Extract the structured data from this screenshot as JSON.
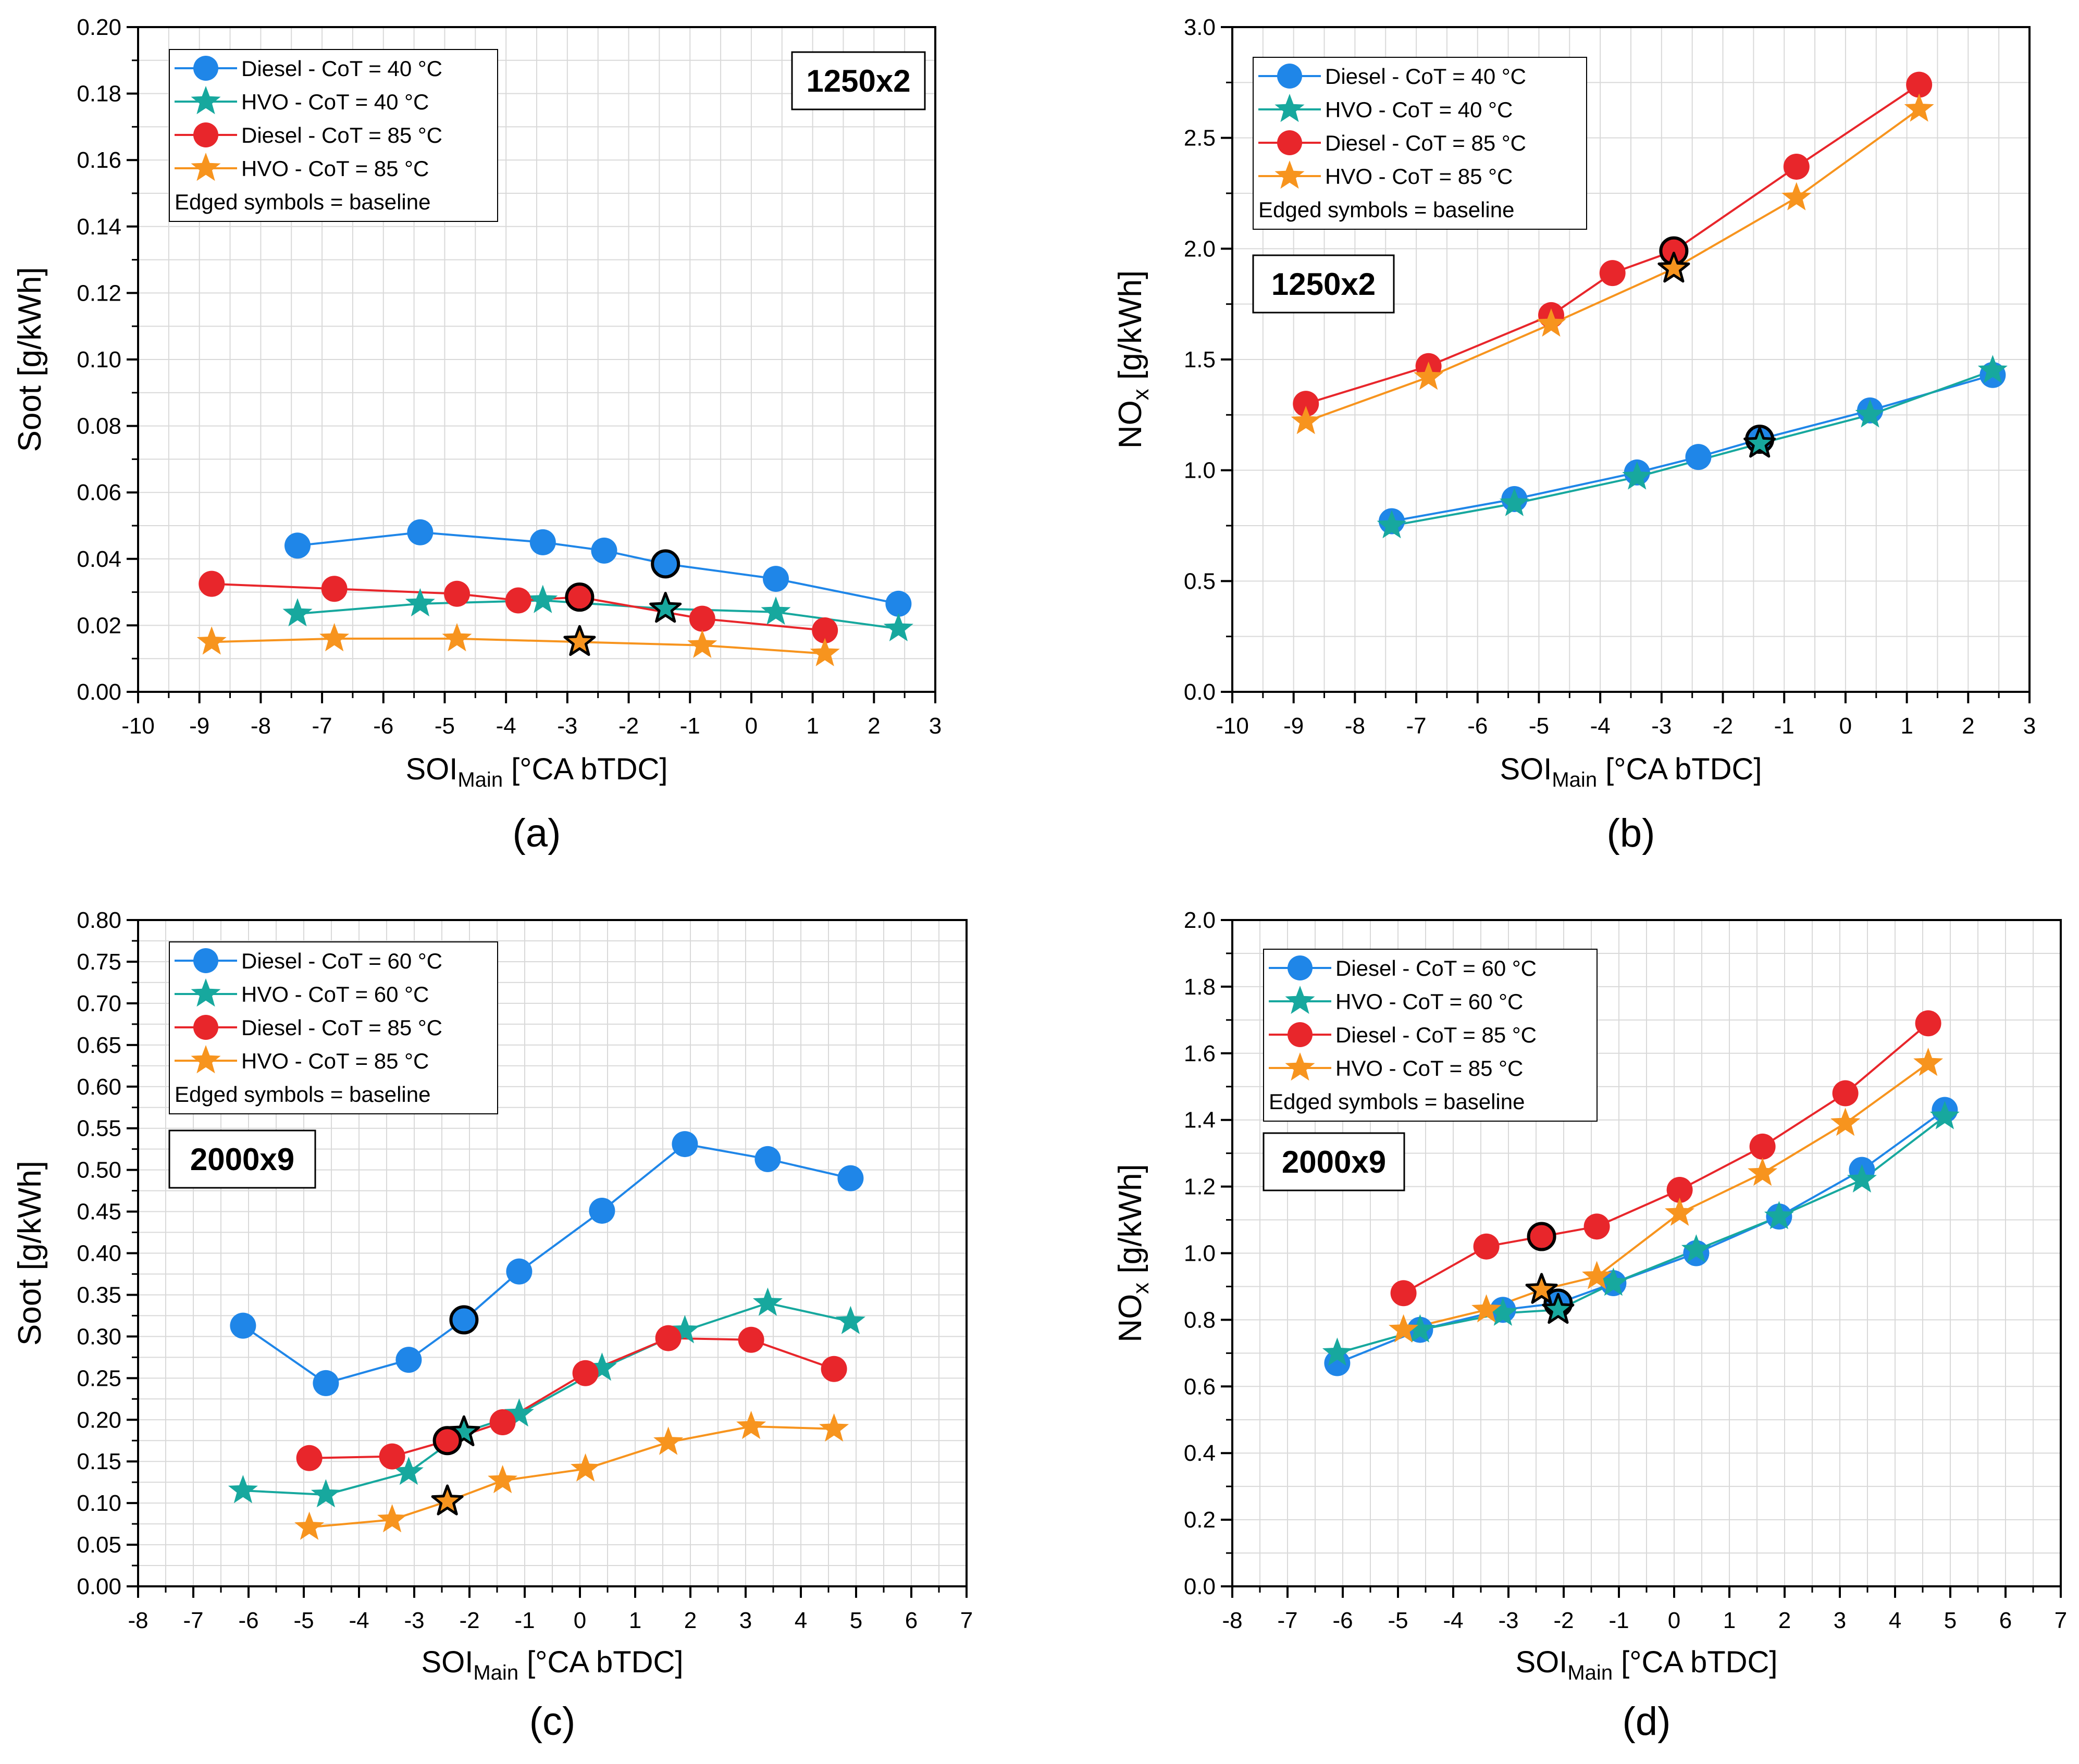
{
  "figure": {
    "panel_labels": [
      "(a)",
      "(b)",
      "(c)",
      "(d)"
    ]
  },
  "chart_data": [
    {
      "panel": "(a)",
      "type": "line",
      "xlabel": "SOI",
      "xlabel_sub": "Main",
      "xlabel_unit": " [°CA bTDC]",
      "ylabel": "Soot [g/kWh]",
      "ylabel_sub": "",
      "ylabel_unit": "",
      "xlim": [
        -10,
        3
      ],
      "xticks": [
        -10,
        -9,
        -8,
        -7,
        -6,
        -5,
        -4,
        -3,
        -2,
        -1,
        0,
        1,
        2,
        3
      ],
      "ylim": [
        0,
        0.2
      ],
      "yticks": [
        0.0,
        0.02,
        0.04,
        0.06,
        0.08,
        0.1,
        0.12,
        0.14,
        0.16,
        0.18,
        0.2
      ],
      "ydecimals": 2,
      "grid": true,
      "condition_box": "1250x2",
      "condition_box_position": "top-right",
      "legend_position": "top-left",
      "legend_note": "Edged symbols = baseline",
      "series": [
        {
          "name": "Diesel - CoT = 40 °C",
          "marker": "circle",
          "color": "#1f86e8",
          "x": [
            -7.4,
            -5.4,
            -3.4,
            -2.4,
            -1.4,
            0.4,
            2.4
          ],
          "y": [
            0.044,
            0.048,
            0.045,
            0.0425,
            0.0385,
            0.034,
            0.0265
          ],
          "baseline_index": 4
        },
        {
          "name": "HVO - CoT = 40 °C",
          "marker": "star",
          "color": "#17a89e",
          "x": [
            -7.4,
            -5.4,
            -3.4,
            -1.4,
            0.4,
            2.4
          ],
          "y": [
            0.0235,
            0.0265,
            0.0275,
            0.025,
            0.024,
            0.019
          ],
          "baseline_index": 3
        },
        {
          "name": "Diesel - CoT = 85 °C",
          "marker": "circle",
          "color": "#e8262b",
          "x": [
            -8.8,
            -6.8,
            -4.8,
            -3.8,
            -2.8,
            -0.8,
            1.2
          ],
          "y": [
            0.0325,
            0.031,
            0.0295,
            0.0275,
            0.0285,
            0.022,
            0.0185
          ],
          "baseline_index": 4
        },
        {
          "name": "HVO - CoT = 85 °C",
          "marker": "star",
          "color": "#f7941e",
          "x": [
            -8.8,
            -6.8,
            -4.8,
            -2.8,
            -0.8,
            1.2
          ],
          "y": [
            0.015,
            0.016,
            0.016,
            0.015,
            0.014,
            0.0115
          ],
          "baseline_index": 3
        }
      ]
    },
    {
      "panel": "(b)",
      "type": "line",
      "xlabel": "SOI",
      "xlabel_sub": "Main",
      "xlabel_unit": " [°CA bTDC]",
      "ylabel": "NO",
      "ylabel_sub": "x",
      "ylabel_unit": " [g/kWh]",
      "xlim": [
        -10,
        3
      ],
      "xticks": [
        -10,
        -9,
        -8,
        -7,
        -6,
        -5,
        -4,
        -3,
        -2,
        -1,
        0,
        1,
        2,
        3
      ],
      "ylim": [
        0,
        3
      ],
      "yticks": [
        0.0,
        0.5,
        1.0,
        1.5,
        2.0,
        2.5,
        3.0
      ],
      "ydecimals": 1,
      "grid": true,
      "condition_box": "1250x2",
      "condition_box_position": "middle-left",
      "legend_position": "top-left",
      "legend_note": "Edged symbols = baseline",
      "series": [
        {
          "name": "Diesel - CoT = 40 °C",
          "marker": "circle",
          "color": "#1f86e8",
          "x": [
            -7.4,
            -5.4,
            -3.4,
            -2.4,
            -1.4,
            0.4,
            2.4
          ],
          "y": [
            0.77,
            0.87,
            0.99,
            1.06,
            1.14,
            1.27,
            1.43
          ],
          "baseline_index": 4
        },
        {
          "name": "HVO - CoT = 40 °C",
          "marker": "star",
          "color": "#17a89e",
          "x": [
            -7.4,
            -5.4,
            -3.4,
            -1.4,
            0.4,
            2.4
          ],
          "y": [
            0.75,
            0.85,
            0.97,
            1.12,
            1.25,
            1.45
          ],
          "baseline_index": 3
        },
        {
          "name": "Diesel - CoT = 85 °C",
          "marker": "circle",
          "color": "#e8262b",
          "x": [
            -8.8,
            -6.8,
            -4.8,
            -3.8,
            -2.8,
            -0.8,
            1.2
          ],
          "y": [
            1.3,
            1.47,
            1.7,
            1.89,
            1.99,
            2.37,
            2.74
          ],
          "baseline_index": 4
        },
        {
          "name": "HVO - CoT = 85 °C",
          "marker": "star",
          "color": "#f7941e",
          "x": [
            -8.8,
            -6.8,
            -4.8,
            -2.8,
            -0.8,
            1.2
          ],
          "y": [
            1.22,
            1.42,
            1.66,
            1.91,
            2.23,
            2.63
          ],
          "baseline_index": 3
        }
      ]
    },
    {
      "panel": "(c)",
      "type": "line",
      "xlabel": "SOI",
      "xlabel_sub": "Main",
      "xlabel_unit": " [°CA bTDC]",
      "ylabel": "Soot [g/kWh]",
      "ylabel_sub": "",
      "ylabel_unit": "",
      "xlim": [
        -8,
        7
      ],
      "xticks": [
        -8,
        -7,
        -6,
        -5,
        -4,
        -3,
        -2,
        -1,
        0,
        1,
        2,
        3,
        4,
        5,
        6,
        7
      ],
      "ylim": [
        0,
        0.8
      ],
      "yticks": [
        0.0,
        0.05,
        0.1,
        0.15,
        0.2,
        0.25,
        0.3,
        0.35,
        0.4,
        0.45,
        0.5,
        0.55,
        0.6,
        0.65,
        0.7,
        0.75,
        0.8
      ],
      "ydecimals": 2,
      "grid": true,
      "condition_box": "2000x9",
      "condition_box_position": "middle-left",
      "legend_position": "top-left",
      "legend_note": "Edged symbols = baseline",
      "series": [
        {
          "name": "Diesel - CoT = 60 °C",
          "marker": "circle",
          "color": "#1f86e8",
          "x": [
            -6.1,
            -4.6,
            -3.1,
            -2.1,
            -1.1,
            0.4,
            1.9,
            3.4,
            4.9
          ],
          "y": [
            0.313,
            0.244,
            0.272,
            0.32,
            0.378,
            0.451,
            0.531,
            0.513,
            0.49
          ],
          "baseline_index": 3
        },
        {
          "name": "HVO - CoT = 60 °C",
          "marker": "star",
          "color": "#17a89e",
          "x": [
            -6.1,
            -4.6,
            -3.1,
            -2.1,
            -1.1,
            0.4,
            1.9,
            3.4,
            4.9
          ],
          "y": [
            0.115,
            0.11,
            0.137,
            0.185,
            0.207,
            0.262,
            0.307,
            0.34,
            0.318
          ],
          "baseline_index": 3
        },
        {
          "name": "Diesel - CoT = 85 °C",
          "marker": "circle",
          "color": "#e8262b",
          "x": [
            -4.9,
            -3.4,
            -2.4,
            -1.4,
            0.1,
            1.6,
            3.1,
            4.6
          ],
          "y": [
            0.154,
            0.156,
            0.175,
            0.197,
            0.256,
            0.298,
            0.296,
            0.261
          ],
          "baseline_index": 2
        },
        {
          "name": "HVO - CoT = 85 °C",
          "marker": "star",
          "color": "#f7941e",
          "x": [
            -4.9,
            -3.4,
            -2.4,
            -1.4,
            0.1,
            1.6,
            3.1,
            4.6
          ],
          "y": [
            0.071,
            0.08,
            0.102,
            0.127,
            0.141,
            0.173,
            0.192,
            0.189
          ],
          "baseline_index": 2
        }
      ]
    },
    {
      "panel": "(d)",
      "type": "line",
      "xlabel": "SOI",
      "xlabel_sub": "Main",
      "xlabel_unit": " [°CA bTDC]",
      "ylabel": "NO",
      "ylabel_sub": "x",
      "ylabel_unit": " [g/kWh]",
      "xlim": [
        -8,
        7
      ],
      "xticks": [
        -8,
        -7,
        -6,
        -5,
        -4,
        -3,
        -2,
        -1,
        0,
        1,
        2,
        3,
        4,
        5,
        6,
        7
      ],
      "ylim": [
        0,
        2
      ],
      "yticks": [
        0.0,
        0.2,
        0.4,
        0.6,
        0.8,
        1.0,
        1.2,
        1.4,
        1.6,
        1.8,
        2.0
      ],
      "ydecimals": 1,
      "grid": true,
      "condition_box": "2000x9",
      "condition_box_position": "middle-left",
      "legend_position": "top-left",
      "legend_note": "Edged symbols = baseline",
      "series": [
        {
          "name": "Diesel - CoT = 60 °C",
          "marker": "circle",
          "color": "#1f86e8",
          "x": [
            -6.1,
            -4.6,
            -3.1,
            -2.1,
            -1.1,
            0.4,
            1.9,
            3.4,
            4.9
          ],
          "y": [
            0.67,
            0.77,
            0.83,
            0.85,
            0.91,
            1.0,
            1.11,
            1.25,
            1.43
          ],
          "baseline_index": 3
        },
        {
          "name": "HVO - CoT = 60 °C",
          "marker": "star",
          "color": "#17a89e",
          "x": [
            -6.1,
            -4.6,
            -3.1,
            -2.1,
            -1.1,
            0.4,
            1.9,
            3.4,
            4.9
          ],
          "y": [
            0.7,
            0.77,
            0.82,
            0.83,
            0.91,
            1.01,
            1.11,
            1.22,
            1.41
          ],
          "baseline_index": 3
        },
        {
          "name": "Diesel - CoT = 85 °C",
          "marker": "circle",
          "color": "#e8262b",
          "x": [
            -4.9,
            -3.4,
            -2.4,
            -1.4,
            0.1,
            1.6,
            3.1,
            4.6
          ],
          "y": [
            0.88,
            1.02,
            1.05,
            1.08,
            1.19,
            1.32,
            1.48,
            1.69
          ],
          "baseline_index": 2
        },
        {
          "name": "HVO - CoT = 85 °C",
          "marker": "star",
          "color": "#f7941e",
          "x": [
            -4.9,
            -3.4,
            -2.4,
            -1.4,
            0.1,
            1.6,
            3.1,
            4.6
          ],
          "y": [
            0.77,
            0.83,
            0.89,
            0.93,
            1.12,
            1.24,
            1.39,
            1.57
          ],
          "baseline_index": 2
        }
      ]
    }
  ]
}
